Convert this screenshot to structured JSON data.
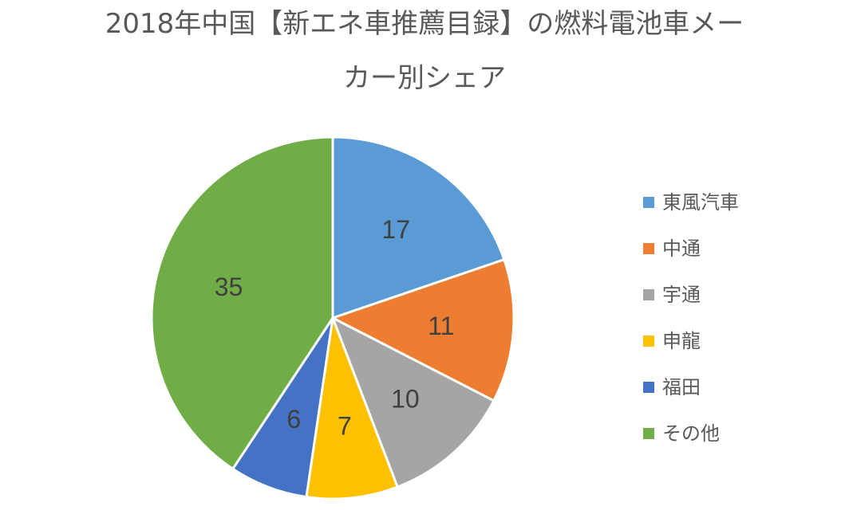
{
  "chart_data": {
    "type": "pie",
    "title_lines": [
      "2018年中国【新エネ車推薦目録】の燃料電池車メー",
      "カー別シェア"
    ],
    "categories": [
      "東風汽車",
      "中通",
      "宇通",
      "申龍",
      "福田",
      "その他"
    ],
    "values": [
      17,
      11,
      10,
      7,
      6,
      35
    ],
    "colors": [
      "#5B9BD5",
      "#ED7D31",
      "#A5A5A5",
      "#FFC000",
      "#4472C4",
      "#70AD47"
    ],
    "start_angle": "12 o'clock",
    "direction": "clockwise",
    "data_labels": "inside",
    "legend_position": "right"
  }
}
